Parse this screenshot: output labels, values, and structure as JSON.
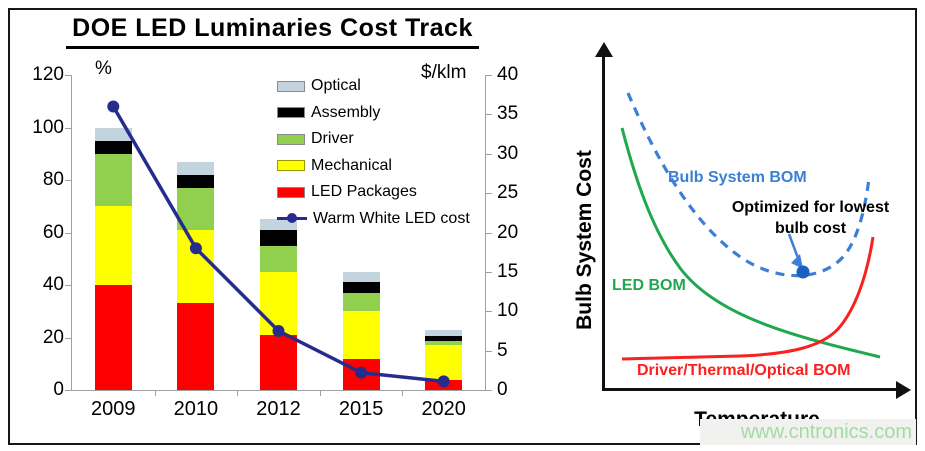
{
  "left_chart": {
    "title": "DOE LED Luminaries Cost Track",
    "left_axis_unit": "%",
    "right_axis_unit": "$/klm",
    "legend": [
      {
        "label": "Optical",
        "color": "#c4d4df",
        "type": "box"
      },
      {
        "label": "Assembly",
        "color": "#000000",
        "type": "box"
      },
      {
        "label": "Driver",
        "color": "#90d04e",
        "type": "box"
      },
      {
        "label": "Mechanical",
        "color": "#ffff00",
        "type": "box"
      },
      {
        "label": "LED Packages",
        "color": "#fe0000",
        "type": "box"
      },
      {
        "label": "Warm White LED cost",
        "color": "#272c8c",
        "type": "line"
      }
    ]
  },
  "chart_data": [
    {
      "type": "bar",
      "subtype": "stacked-bars-with-line",
      "title": "DOE LED Luminaries Cost Track",
      "categories": [
        "2009",
        "2010",
        "2012",
        "2015",
        "2020"
      ],
      "series": [
        {
          "name": "LED Packages",
          "color": "#fe0000",
          "values": [
            40,
            33,
            21,
            12,
            4
          ]
        },
        {
          "name": "Mechanical",
          "color": "#ffff00",
          "values": [
            30,
            28,
            24,
            18,
            13
          ]
        },
        {
          "name": "Driver",
          "color": "#90d04e",
          "values": [
            20,
            16,
            10,
            7,
            1.5
          ]
        },
        {
          "name": "Assembly",
          "color": "#000000",
          "values": [
            5,
            5,
            6,
            4,
            2
          ]
        },
        {
          "name": "Optical",
          "color": "#c4d4df",
          "values": [
            5,
            5,
            4,
            4,
            2.5
          ]
        }
      ],
      "line_series": {
        "name": "Warm White LED cost",
        "color": "#272c8c",
        "axis": "right",
        "values": [
          36,
          18,
          7.5,
          2.2,
          1.1
        ]
      },
      "left_axis": {
        "unit": "%",
        "min": 0,
        "max": 120,
        "ticks": [
          0,
          20,
          40,
          60,
          80,
          100,
          120
        ]
      },
      "right_axis": {
        "unit": "$/klm",
        "min": 0,
        "max": 40,
        "ticks": [
          0,
          5,
          10,
          15,
          20,
          25,
          30,
          35,
          40
        ]
      },
      "grid": false,
      "legend_position": "top-right-inside"
    },
    {
      "type": "line",
      "subtype": "conceptual-no-scale",
      "xlabel": "Temperature",
      "ylabel": "Bulb System Cost",
      "series": [
        {
          "name": "Bulb System BOM",
          "color": "#3b7fd6",
          "style": "dashed",
          "shape": "U-curve: high at low temperature, minimum at optimized point, rising again at high temperature"
        },
        {
          "name": "LED BOM",
          "color": "#1fa84d",
          "style": "solid",
          "shape": "steeply decreasing then flattening as temperature rises"
        },
        {
          "name": "Driver/Thermal/Optical BOM",
          "color": "#fb2020",
          "style": "solid",
          "shape": "flat at low temperature, sharp spike upward at high temperature"
        }
      ],
      "annotation": "Optimized for lowest bulb cost (marker at minimum of Bulb System BOM)"
    }
  ],
  "right_chart": {
    "y_axis_label": "Bulb System Cost",
    "x_axis_label": "Temperature",
    "label_bulb_system_bom": "Bulb System BOM",
    "label_led_bom": "LED BOM",
    "label_driver_bom": "Driver/Thermal/Optical BOM",
    "annotation_lines": [
      "Optimized for lowest",
      "bulb cost"
    ],
    "colors": {
      "bulb_system_bom": "#3b7fd6",
      "led_bom": "#1fa84d",
      "driver_bom": "#fb2020",
      "optimum_dot": "#1b5fc0",
      "axis": "#111111"
    }
  },
  "watermark": {
    "text": "www.cntronics.com",
    "color": "#a4dba4"
  }
}
